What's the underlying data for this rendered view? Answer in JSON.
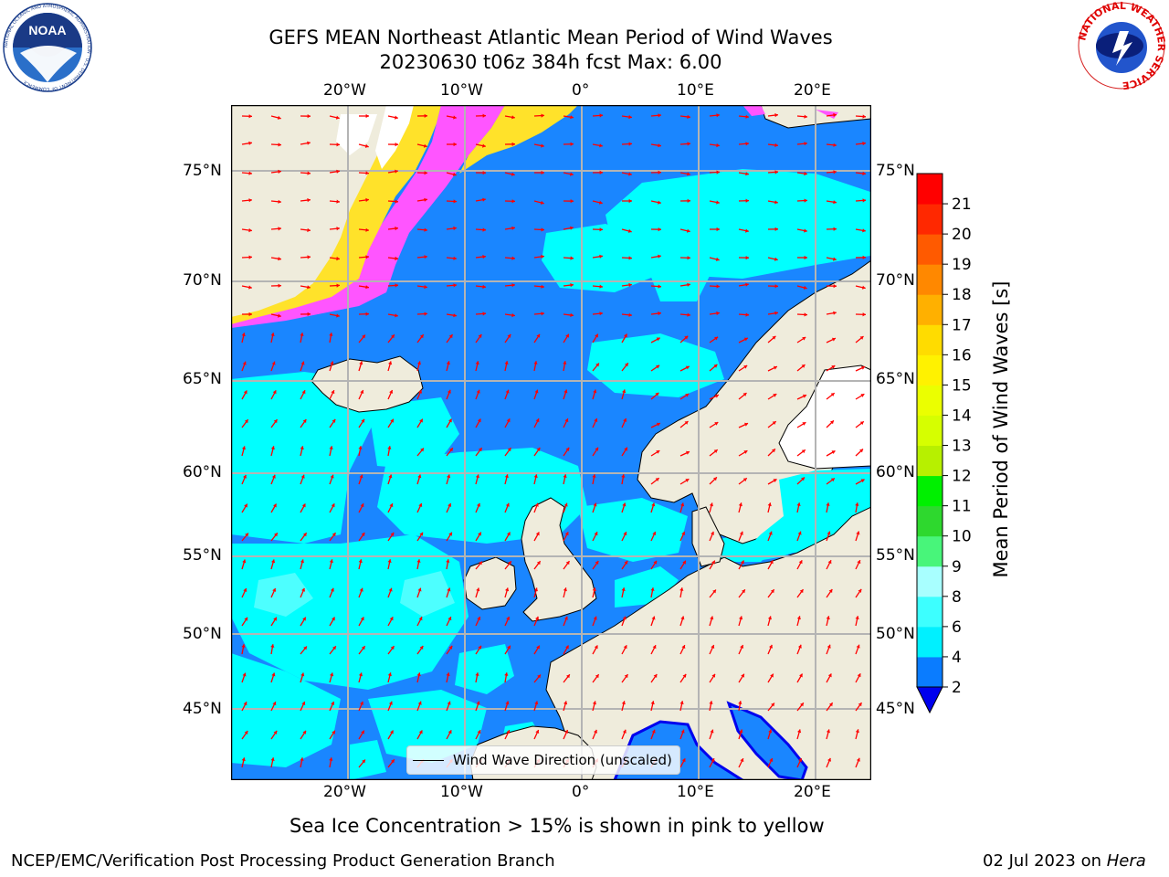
{
  "header": {
    "title_line1": "GEFS MEAN Northeast Atlantic Mean Period of Wind Waves",
    "title_line2": "20230630 t06z 384h fcst   Max: 6.00"
  },
  "logos": {
    "noaa_text": "NOAA",
    "noaa_ring_text": "NATIONAL OCEANIC AND ATMOSPHERIC ADMINISTRATION · U.S. DEPARTMENT OF COMMERCE",
    "nws_ring_text": "NATIONAL WEATHER SERVICE"
  },
  "map": {
    "lon_ticks_top": [
      "20°W",
      "10°W",
      "0°",
      "10°E",
      "20°E"
    ],
    "lon_ticks_bottom": [
      "20°W",
      "10°W",
      "0°",
      "10°E",
      "20°E"
    ],
    "lat_ticks_left": [
      "75°N",
      "70°N",
      "65°N",
      "60°N",
      "55°N",
      "50°N",
      "45°N"
    ],
    "lat_ticks_right": [
      "75°N",
      "70°N",
      "65°N",
      "60°N",
      "55°N",
      "50°N",
      "45°N"
    ],
    "legend_label": "Wind Wave Direction (unscaled)",
    "colors": {
      "land": "#efecdc",
      "ocean_2_4": "#1a86ff",
      "ocean_4_6": "#00ffff",
      "ocean_6_8": "#4dffff",
      "ocean_below_2": "#0000ee",
      "ice_pink": "#ff55ff",
      "ice_yellow": "#ffe22a",
      "arrows": "#ff0000",
      "grid": "#b4b4b4"
    }
  },
  "colorbar": {
    "label": "Mean Period of Wind Waves [s]",
    "ticks": [
      "2",
      "4",
      "6",
      "8",
      "9",
      "10",
      "11",
      "12",
      "13",
      "14",
      "15",
      "16",
      "17",
      "18",
      "19",
      "20",
      "21"
    ],
    "colors": [
      "#0a7cff",
      "#00f0ff",
      "#3dffff",
      "#a8ffff",
      "#48f57a",
      "#2ed82e",
      "#00f000",
      "#b7f000",
      "#d6ff00",
      "#ebff00",
      "#fff200",
      "#ffdc00",
      "#ffb000",
      "#ff8800",
      "#ff5a00",
      "#ff2800",
      "#ff0000"
    ],
    "extend_color": "#0000ee"
  },
  "notes": {
    "ice": "Sea Ice Concentration > 15% is shown in pink to yellow"
  },
  "footer": {
    "left": "NCEP/EMC/Verification Post Processing Product Generation Branch",
    "right_prefix": "02 Jul 2023 on ",
    "right_italic": "Hera"
  }
}
